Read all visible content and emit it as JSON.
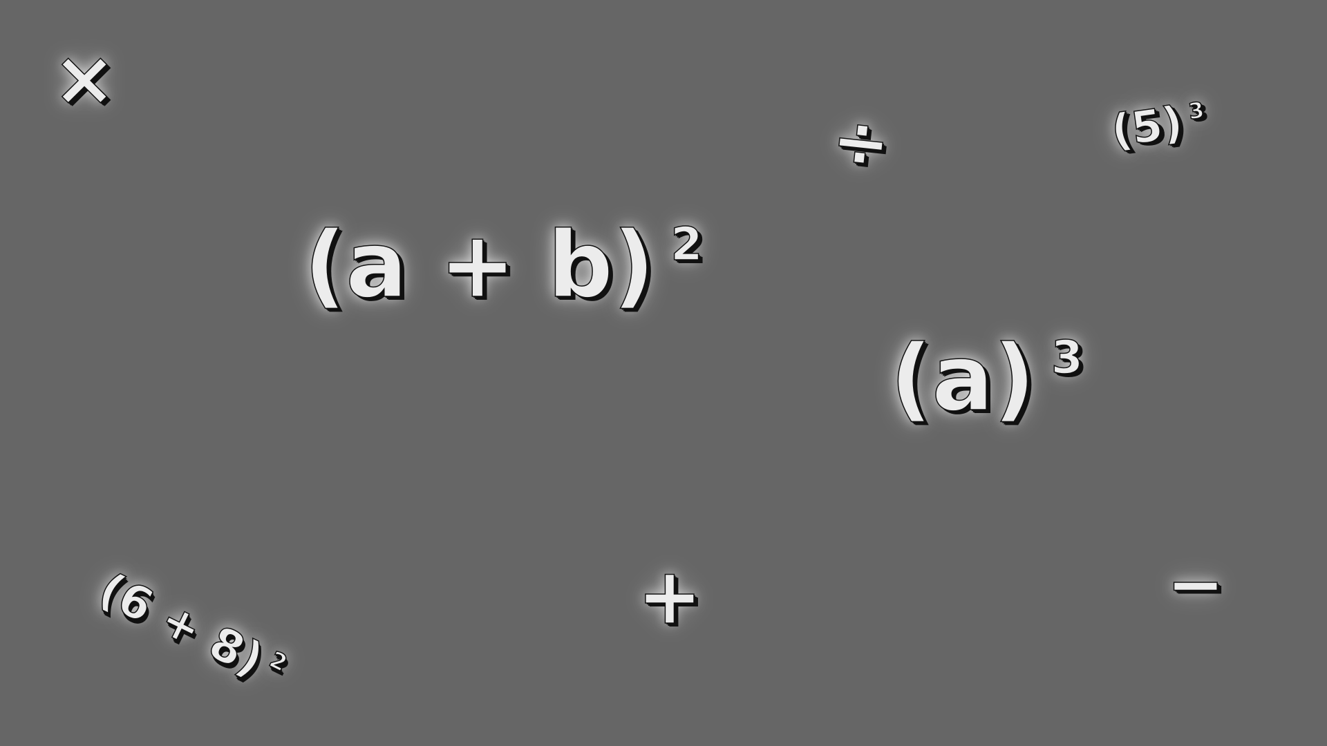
{
  "symbols": {
    "times": "×",
    "divide": "÷",
    "plus": "+",
    "minus": "−"
  },
  "expressions": {
    "a_plus_b_squared": {
      "base_open": "(a",
      "op": "+",
      "base_close": "b)",
      "exponent": "2"
    },
    "a_cubed": {
      "base": "(a)",
      "exponent": "3"
    },
    "five_cubed": {
      "base": "(5)",
      "exponent": "3"
    },
    "six_plus_eight_squared": {
      "base": "(6 + 8)",
      "exponent": "2"
    }
  },
  "colors": {
    "background": "#666666",
    "glyph_fill": "#ececec",
    "glyph_outline": "#111111",
    "glow": "#ffffff"
  }
}
